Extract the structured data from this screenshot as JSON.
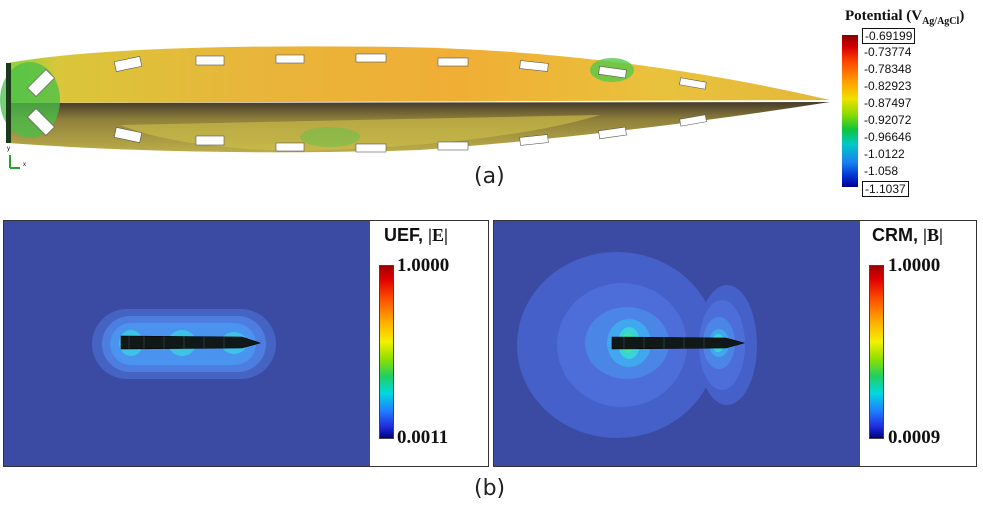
{
  "panel_a": {
    "caption": "(a)",
    "legend": {
      "title_main": "Potential (V",
      "title_sub": "Ag/AgCl",
      "title_end": ")",
      "ticks": [
        "-0.69199",
        "-0.73774",
        "-0.78348",
        "-0.82923",
        "-0.87497",
        "-0.92072",
        "-0.96646",
        "-1.0122",
        "-1.058",
        "-1.1037"
      ],
      "highlighted_ticks": [
        "-0.69199",
        "-1.1037"
      ]
    },
    "axes_triad": {
      "y_label": "y",
      "x_label": "x"
    }
  },
  "panel_b": {
    "caption": "(b)",
    "left": {
      "title": "UEF, ",
      "symbol": "|E|",
      "max": "1.0000",
      "min": "0.0011"
    },
    "right": {
      "title": "CRM, ",
      "symbol": "|B|",
      "max": "1.0000",
      "min": "0.0009"
    }
  },
  "colors": {
    "field_background": "#3b4ba3",
    "hull_mesh": "#222222"
  }
}
